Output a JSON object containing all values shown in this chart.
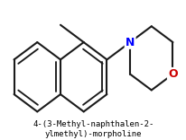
{
  "title_line1": "4-(3-Methyl-naphthalen-2-",
  "title_line2": "ylmethyl)-morpholine",
  "bg_color": "#ffffff",
  "bond_color": "#1a1a1a",
  "N_color": "#0000ff",
  "O_color": "#cc0000",
  "title_color": "#000000",
  "line_width": 1.5,
  "font_size": 6.5
}
